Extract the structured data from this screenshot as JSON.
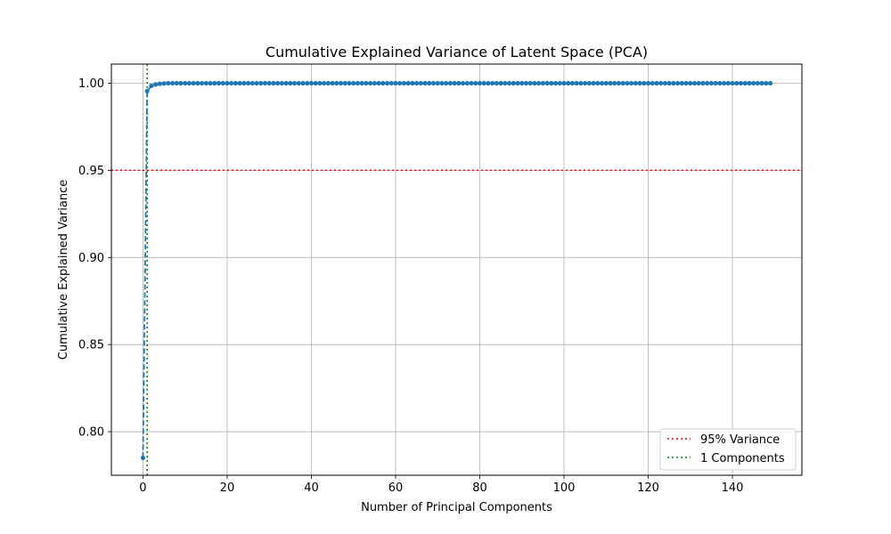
{
  "chart_data": {
    "type": "line",
    "title": "Cumulative Explained Variance of Latent Space (PCA)",
    "xlabel": "Number of Principal Components",
    "ylabel": "Cumulative Explained Variance",
    "xlim": [
      -7.5,
      156.5
    ],
    "ylim": [
      0.775,
      1.011
    ],
    "xticks": [
      0,
      20,
      40,
      60,
      80,
      100,
      120,
      140
    ],
    "yticks": [
      0.8,
      0.85,
      0.9,
      0.95,
      1.0
    ],
    "ytick_labels": [
      "0.80",
      "0.85",
      "0.90",
      "0.95",
      "1.00"
    ],
    "grid": true,
    "series": [
      {
        "color": "#1f77b4",
        "marker": "circle",
        "linestyle": "dashed",
        "n_points": 150,
        "head_values": [
          0.785,
          0.9955,
          0.9985,
          0.9993,
          0.9997,
          0.9999
        ],
        "tail_value": 1.0
      }
    ],
    "reference_lines": [
      {
        "orientation": "horizontal",
        "value": 0.95,
        "color": "#ff0000",
        "linestyle": "dotted",
        "label": "95% Variance"
      },
      {
        "orientation": "vertical",
        "value": 1,
        "color": "#008000",
        "linestyle": "dotted",
        "label": "1 Components"
      }
    ],
    "legend_position": "lower-right"
  }
}
